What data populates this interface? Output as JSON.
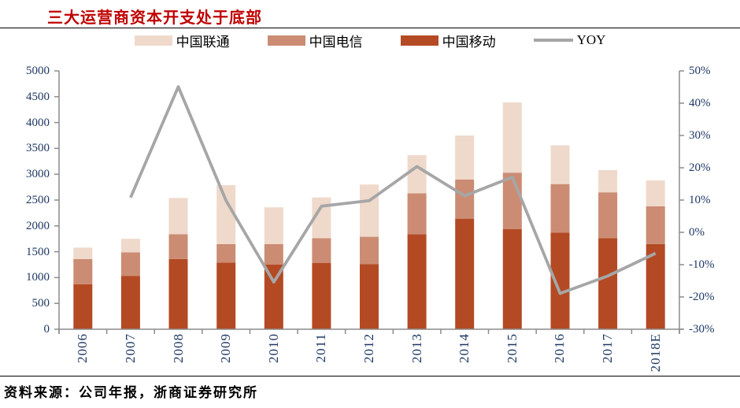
{
  "title": {
    "text": "三大运营商资本开支处于底部",
    "color": "#C00000"
  },
  "legend": [
    {
      "label": "中国联通",
      "color": "#EFD9CB",
      "type": "box"
    },
    {
      "label": "中国电信",
      "color": "#CB8C73",
      "type": "box"
    },
    {
      "label": "中国移动",
      "color": "#B34A24",
      "type": "box"
    },
    {
      "label": "YOY",
      "color": "#A6A6A6",
      "type": "line"
    }
  ],
  "chart_data": {
    "type": "bar",
    "subtype": "stacked-bar-with-line",
    "categories": [
      "2006",
      "2007",
      "2008",
      "2009",
      "2010",
      "2011",
      "2012",
      "2013",
      "2014",
      "2015",
      "2016",
      "2017",
      "2018E"
    ],
    "series": [
      {
        "name": "中国移动",
        "role": "bar",
        "stack_index": 0,
        "color": "#B34A24",
        "values": [
          870,
          1030,
          1360,
          1290,
          1250,
          1280,
          1260,
          1840,
          2140,
          1940,
          1870,
          1760,
          1650
        ]
      },
      {
        "name": "中国电信",
        "role": "bar",
        "stack_index": 1,
        "color": "#CB8C73",
        "values": [
          490,
          460,
          480,
          360,
          400,
          480,
          530,
          790,
          760,
          1090,
          940,
          890,
          730
        ]
      },
      {
        "name": "中国联通",
        "role": "bar",
        "stack_index": 2,
        "color": "#EFD9CB",
        "values": [
          220,
          260,
          700,
          1140,
          710,
          790,
          1010,
          740,
          850,
          1360,
          750,
          430,
          500
        ]
      },
      {
        "name": "YOY",
        "role": "line",
        "axis": "right",
        "color": "#A6A6A6",
        "values": [
          null,
          10.8,
          45.1,
          9.8,
          -15.4,
          8.1,
          9.8,
          20.4,
          11.3,
          17.1,
          -18.9,
          -13.5,
          -6.5
        ]
      }
    ],
    "stack_totals": [
      1580,
      1750,
      2540,
      2790,
      2360,
      2550,
      2800,
      3370,
      3750,
      4390,
      3560,
      3080,
      2880
    ],
    "left_axis": {
      "min": 0,
      "max": 5000,
      "step": 500,
      "tick_labels": [
        "0",
        "500",
        "1000",
        "1500",
        "2000",
        "2500",
        "3000",
        "3500",
        "4000",
        "4500",
        "5000"
      ]
    },
    "right_axis": {
      "min": -30,
      "max": 50,
      "step": 10,
      "tick_labels": [
        "-30%",
        "-20%",
        "-10%",
        "0%",
        "10%",
        "20%",
        "30%",
        "40%",
        "50%"
      ]
    },
    "grid": false,
    "legend_position": "top"
  },
  "colors": {
    "axis_line": "#8C8C8C",
    "axis_label": "#1F3864",
    "rule": "#000000"
  },
  "source": {
    "text": "资料来源：公司年报，浙商证券研究所"
  }
}
